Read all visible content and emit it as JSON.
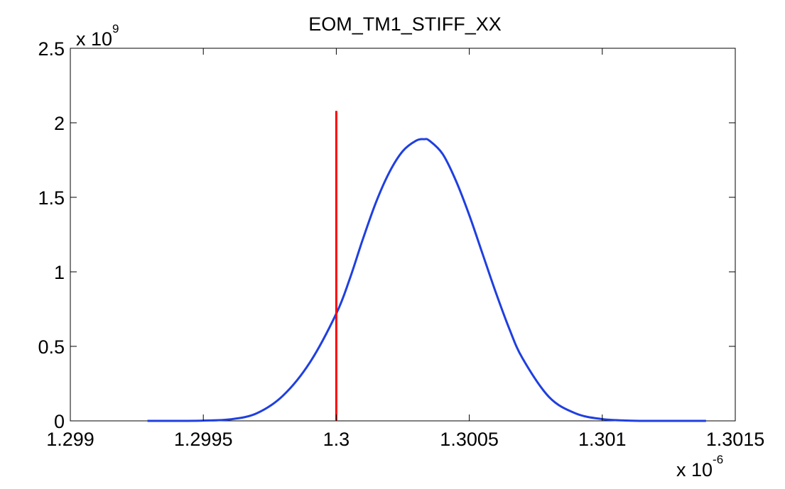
{
  "chart_data": {
    "type": "line",
    "title": "EOM_TM1_STIFF_XX",
    "xlabel": "",
    "ylabel": "",
    "xlim": [
      1.299,
      1.3015
    ],
    "ylim": [
      0,
      2.5
    ],
    "x_ticks": [
      1.299,
      1.2995,
      1.3,
      1.3005,
      1.301,
      1.3015
    ],
    "x_tick_labels": [
      "1.299",
      "1.2995",
      "1.3",
      "1.3005",
      "1.301",
      "1.3015"
    ],
    "y_ticks": [
      0,
      0.5,
      1,
      1.5,
      2,
      2.5
    ],
    "y_tick_labels": [
      "0",
      "0.5",
      "1",
      "1.5",
      "2",
      "2.5"
    ],
    "x_multiplier": {
      "base": "x 10",
      "exponent": "-6"
    },
    "y_multiplier": {
      "base": "x 10",
      "exponent": "9"
    },
    "grid": false,
    "legend": "none",
    "series": [
      {
        "color": "#1f3fe0",
        "x": [
          1.29929,
          1.2994,
          1.2995,
          1.2996,
          1.2997,
          1.2998,
          1.2999,
          1.3,
          1.30005,
          1.3001,
          1.30015,
          1.3002,
          1.30025,
          1.3003,
          1.30033,
          1.30035,
          1.3004,
          1.30045,
          1.3005,
          1.30055,
          1.3006,
          1.30065,
          1.3007,
          1.3008,
          1.3009,
          1.301,
          1.3011,
          1.3012,
          1.30139
        ],
        "y": [
          0.0,
          0.0,
          0.002,
          0.01,
          0.05,
          0.17,
          0.39,
          0.72,
          0.95,
          1.22,
          1.47,
          1.67,
          1.81,
          1.88,
          1.89,
          1.88,
          1.79,
          1.61,
          1.38,
          1.12,
          0.86,
          0.62,
          0.42,
          0.16,
          0.05,
          0.012,
          0.002,
          0.0,
          0.0
        ]
      },
      {
        "color": "#ff0000",
        "x": [
          1.3,
          1.3
        ],
        "y": [
          0,
          2.08
        ]
      }
    ]
  }
}
